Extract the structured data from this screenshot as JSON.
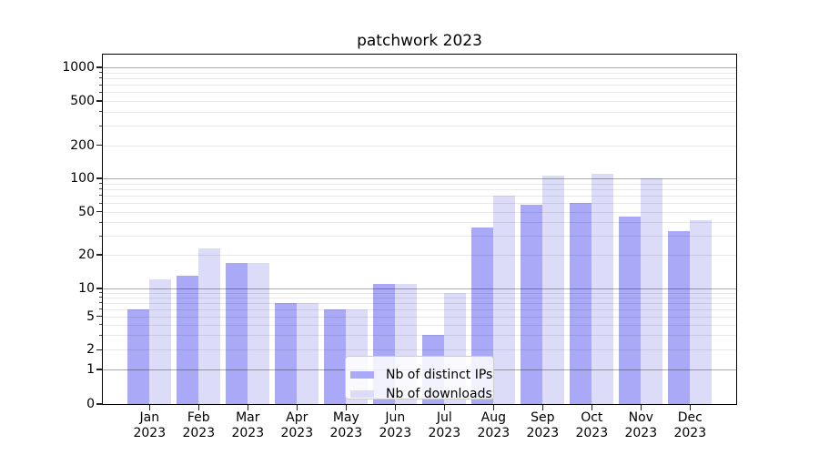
{
  "title": "patchwork 2023",
  "legend": {
    "items": [
      {
        "label": "Nb of distinct IPs",
        "color": "#a9a9f8"
      },
      {
        "label": "Nb of downloads",
        "color": "#dcdcf9"
      }
    ]
  },
  "x_axis": {
    "months": [
      "Jan",
      "Feb",
      "Mar",
      "Apr",
      "May",
      "Jun",
      "Jul",
      "Aug",
      "Sep",
      "Oct",
      "Nov",
      "Dec"
    ],
    "year": "2023"
  },
  "y_axis": {
    "tick_labels": [
      "0",
      "1",
      "2",
      "5",
      "10",
      "20",
      "50",
      "100",
      "200",
      "500",
      "1000"
    ]
  },
  "chart_data": {
    "type": "bar",
    "title": "patchwork 2023",
    "categories": [
      "Jan 2023",
      "Feb 2023",
      "Mar 2023",
      "Apr 2023",
      "May 2023",
      "Jun 2023",
      "Jul 2023",
      "Aug 2023",
      "Sep 2023",
      "Oct 2023",
      "Nov 2023",
      "Dec 2023"
    ],
    "series": [
      {
        "name": "Nb of distinct IPs",
        "color": "#a9a9f8",
        "values": [
          6,
          13,
          17,
          7,
          6,
          11,
          3,
          36,
          58,
          60,
          45,
          33
        ]
      },
      {
        "name": "Nb of downloads",
        "color": "#dcdcf9",
        "values": [
          12,
          23,
          17,
          7,
          6,
          11,
          9,
          70,
          106,
          110,
          100,
          42
        ]
      }
    ],
    "xlabel": "",
    "ylabel": "",
    "yscale": "symlog",
    "ylim": [
      0,
      1300
    ],
    "y_ticks": [
      0,
      1,
      2,
      5,
      10,
      20,
      50,
      100,
      200,
      500,
      1000
    ],
    "y_major_gridlines": [
      1,
      10,
      100,
      1000
    ],
    "y_minor_gridlines": [
      3,
      4,
      6,
      7,
      8,
      9,
      30,
      40,
      60,
      70,
      80,
      90,
      300,
      400,
      600,
      700,
      800,
      900
    ],
    "grid": true,
    "legend_position": "lower center",
    "bar_total_width_fraction": 0.9
  }
}
